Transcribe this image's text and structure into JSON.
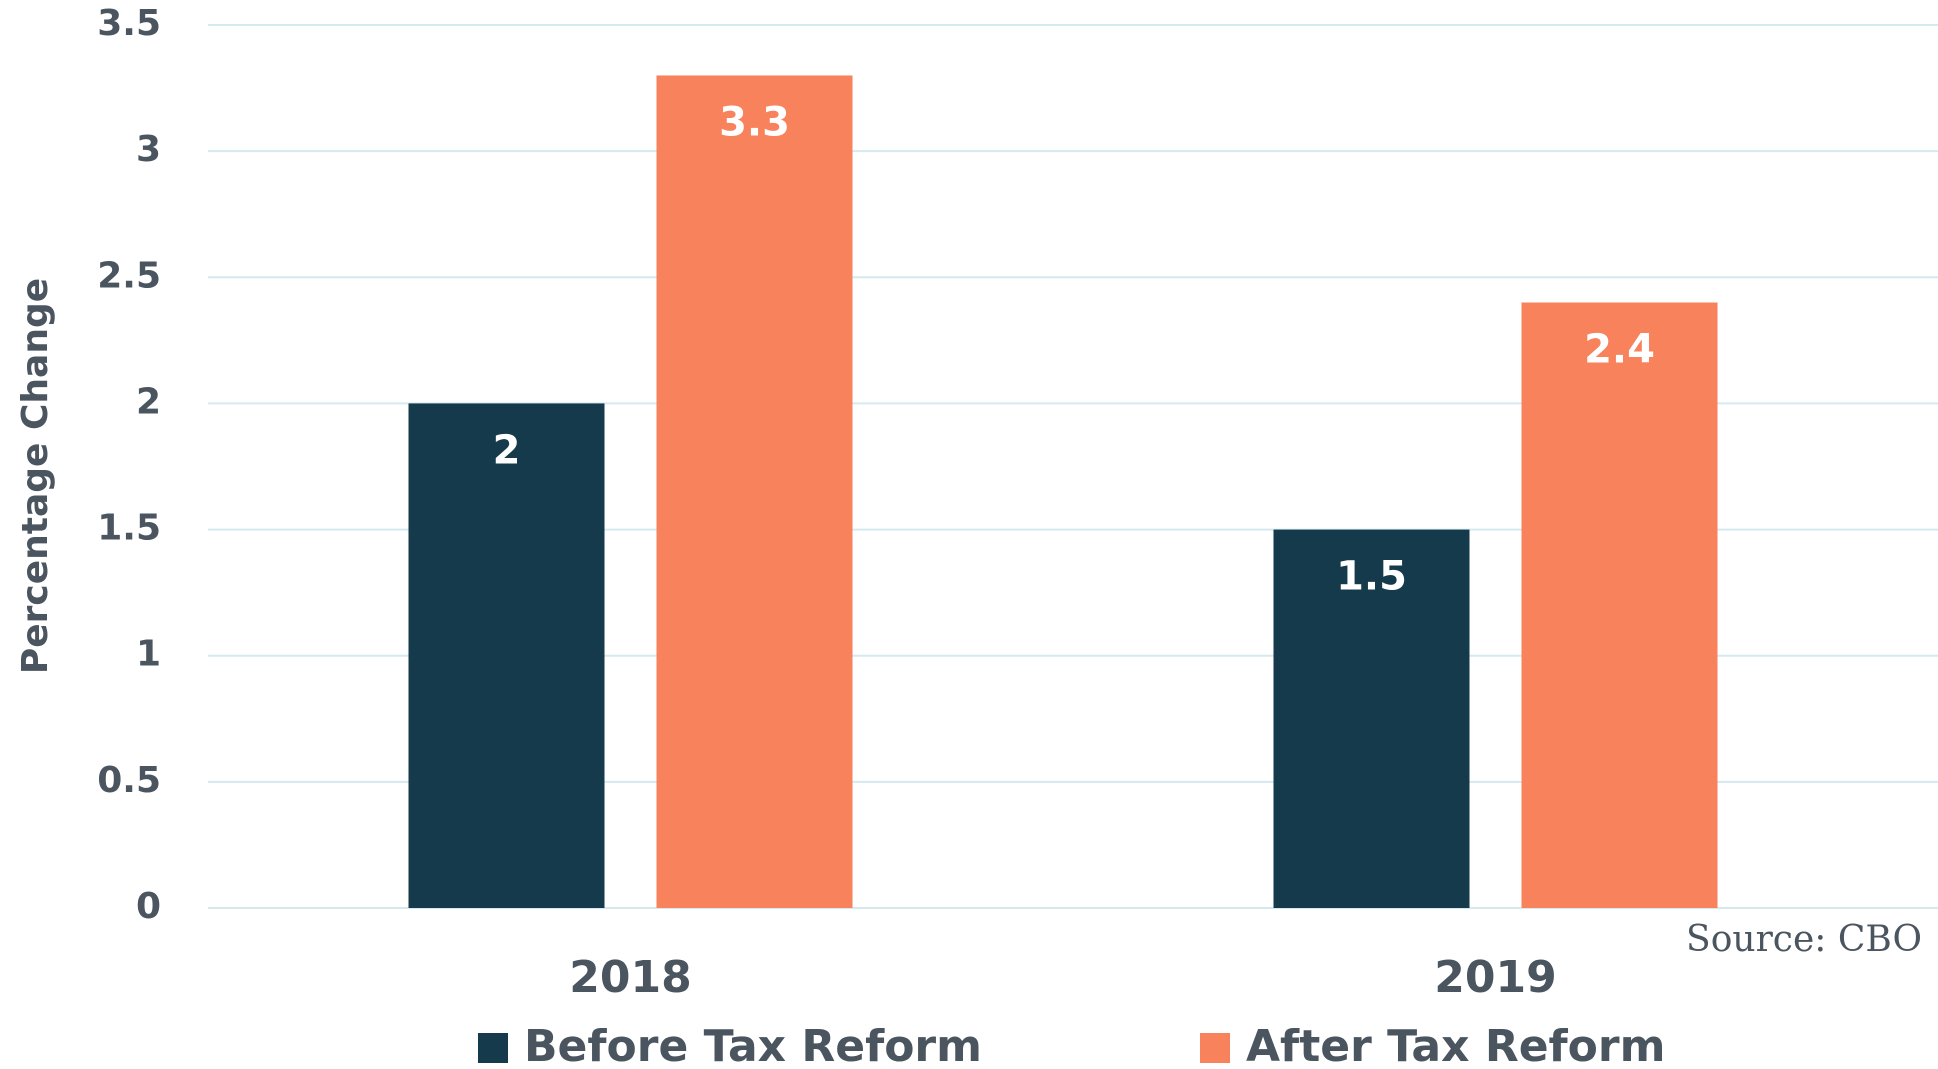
{
  "chart_data": {
    "type": "bar",
    "y_label": "Percentage Change",
    "categories": [
      "2018",
      "2019"
    ],
    "series": [
      {
        "name": "Before Tax Reform",
        "color": "#143a4b",
        "values": [
          2,
          1.5
        ]
      },
      {
        "name": "After Tax Reform",
        "color": "#f7825b",
        "values": [
          3.3,
          2.4
        ]
      }
    ],
    "ylim": [
      0,
      3.5
    ],
    "yticks": [
      0,
      0.5,
      1,
      1.5,
      2,
      2.5,
      3,
      3.5
    ],
    "grid": true,
    "legend": "bottom",
    "annotation": "Source: CBO"
  }
}
